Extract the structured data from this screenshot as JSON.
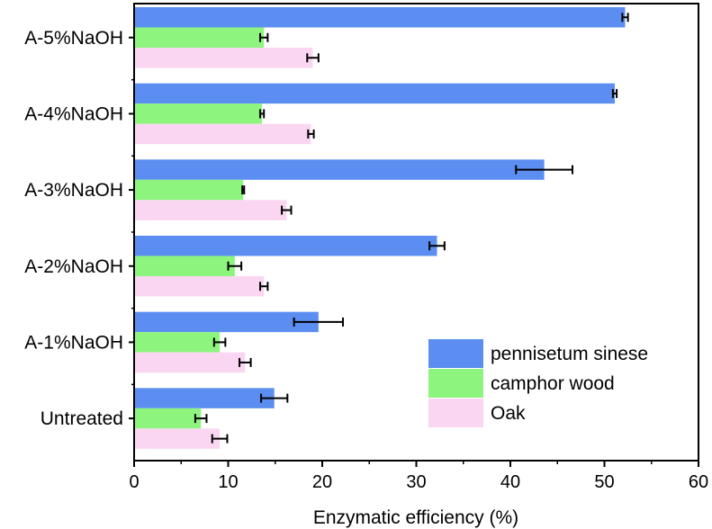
{
  "chart_data": {
    "type": "bar",
    "orientation": "horizontal",
    "title": "",
    "xlabel": "Enzymatic efficiency (%)",
    "ylabel": "",
    "xlim": [
      0,
      60
    ],
    "x_ticks": [
      0,
      10,
      20,
      30,
      40,
      50,
      60
    ],
    "grid": false,
    "legend_position": "bottom-right",
    "categories": [
      "A-5%NaOH",
      "A-4%NaOH",
      "A-3%NaOH",
      "A-2%NaOH",
      "A-1%NaOH",
      "Untreated"
    ],
    "series": [
      {
        "name": "pennisetum sinese",
        "color": "#5b8ef0",
        "values": [
          52.2,
          51.1,
          43.6,
          32.2,
          19.6,
          14.9
        ],
        "errors": [
          0.3,
          0.2,
          3.0,
          0.8,
          2.6,
          1.4
        ]
      },
      {
        "name": "camphor wood",
        "color": "#8df57e",
        "values": [
          13.8,
          13.6,
          11.6,
          10.7,
          9.1,
          7.1
        ],
        "errors": [
          0.4,
          0.2,
          0.1,
          0.7,
          0.6,
          0.6
        ]
      },
      {
        "name": "Oak",
        "color": "#fbd6f2",
        "values": [
          19.0,
          18.8,
          16.2,
          13.8,
          11.8,
          9.1
        ],
        "errors": [
          0.6,
          0.3,
          0.5,
          0.4,
          0.6,
          0.8
        ]
      }
    ]
  }
}
